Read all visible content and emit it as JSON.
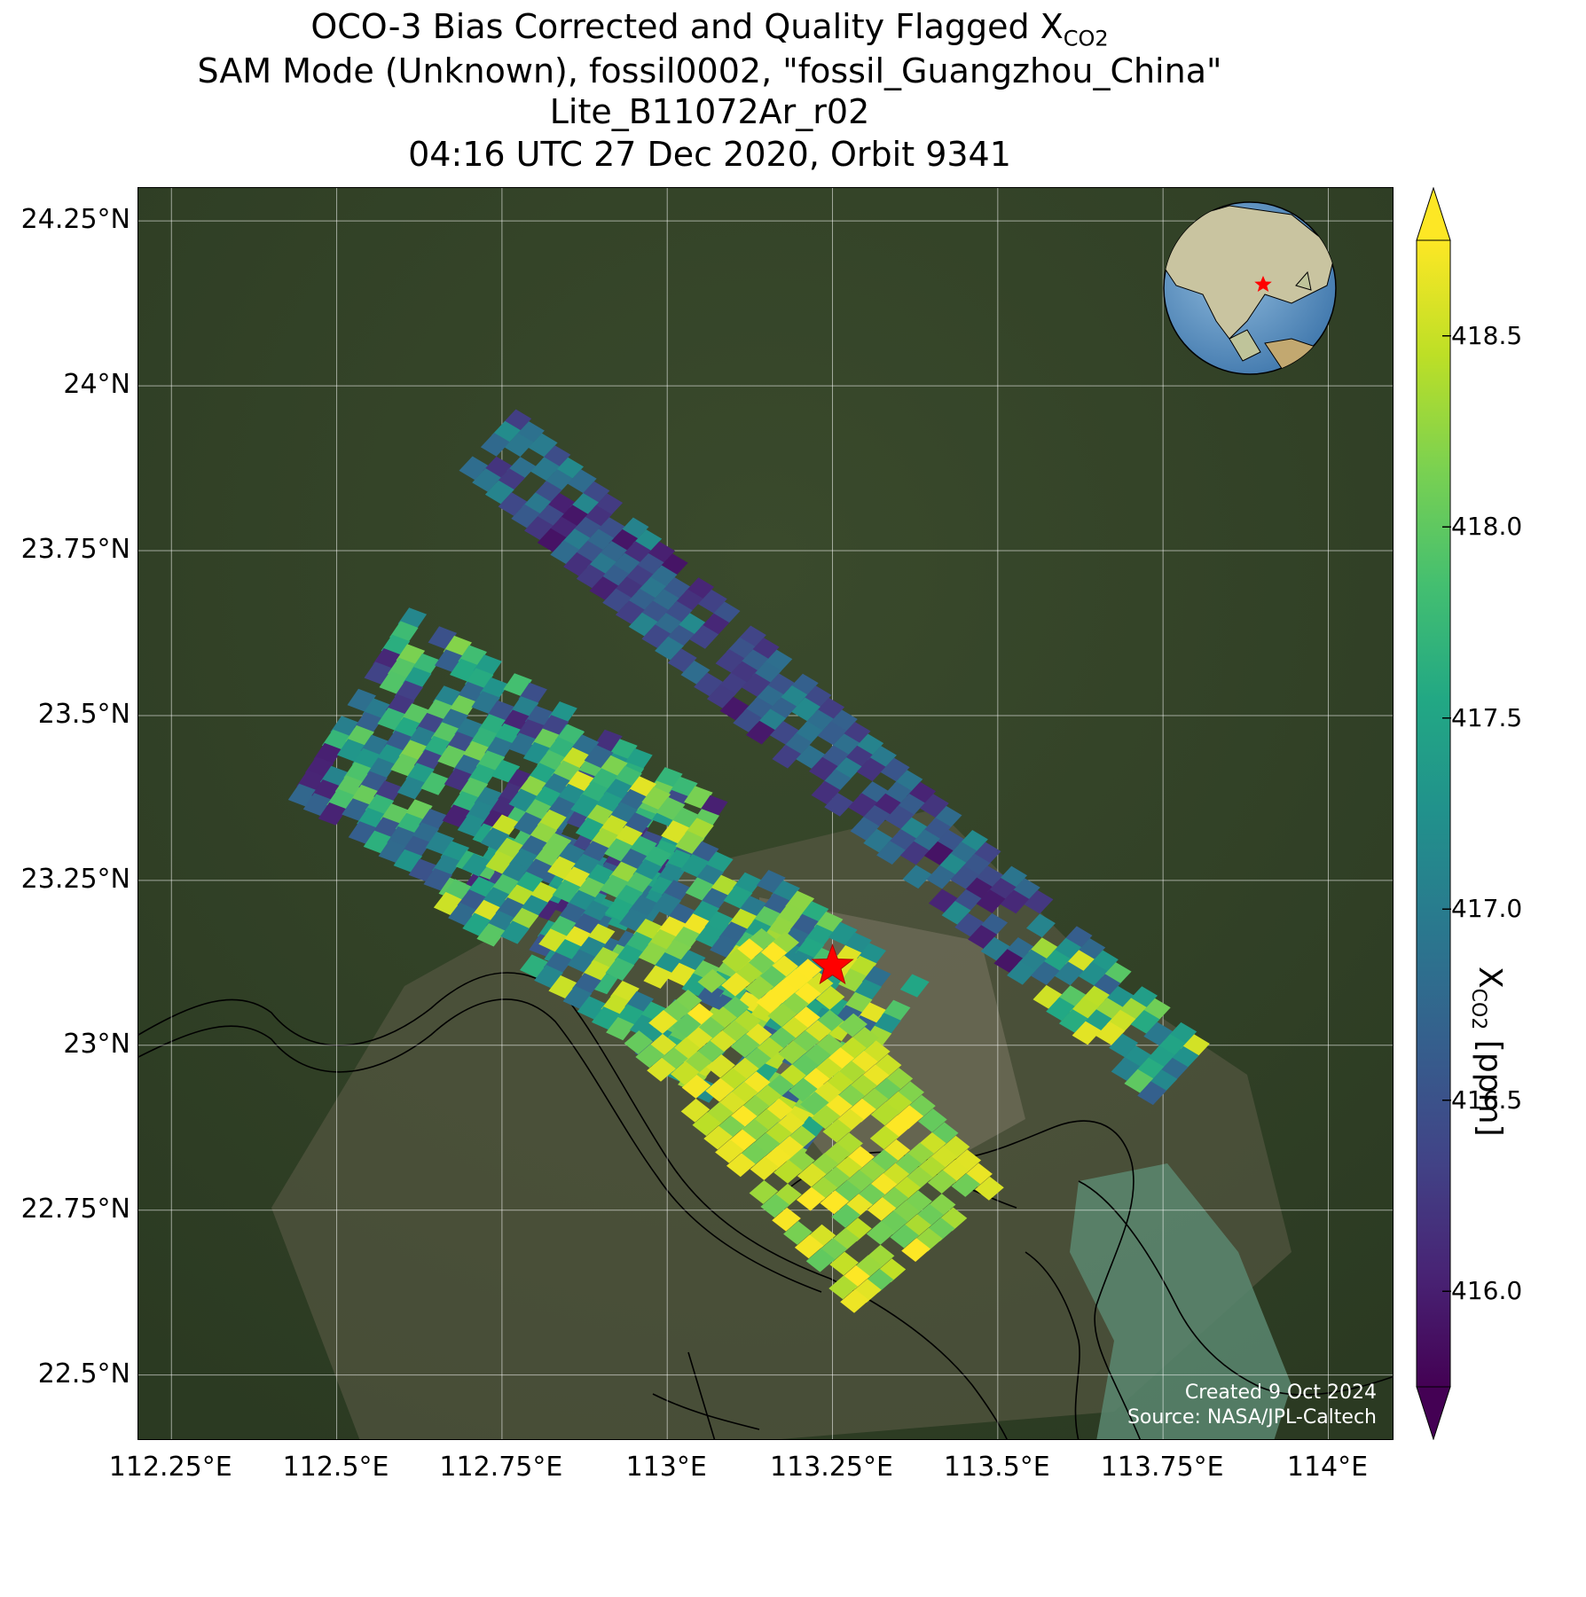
{
  "title": {
    "line1_prefix": "OCO-3 Bias Corrected and Quality Flagged X",
    "line1_sub": "CO2",
    "line2": "SAM Mode (Unknown), fossil0002, \"fossil_Guangzhou_China\"",
    "line3": "Lite_B11072Ar_r02",
    "line4": "04:16 UTC 27 Dec 2020, Orbit 9341"
  },
  "map": {
    "lon_range": [
      112.2,
      114.1
    ],
    "lat_range": [
      22.4,
      24.3
    ],
    "lon_ticks": [
      {
        "value": 112.25,
        "label": "112.25°E"
      },
      {
        "value": 112.5,
        "label": "112.5°E"
      },
      {
        "value": 112.75,
        "label": "112.75°E"
      },
      {
        "value": 113.0,
        "label": "113°E"
      },
      {
        "value": 113.25,
        "label": "113.25°E"
      },
      {
        "value": 113.5,
        "label": "113.5°E"
      },
      {
        "value": 113.75,
        "label": "113.75°E"
      },
      {
        "value": 114.0,
        "label": "114°E"
      }
    ],
    "lat_ticks": [
      {
        "value": 24.25,
        "label": "24.25°N"
      },
      {
        "value": 24.0,
        "label": "24°N"
      },
      {
        "value": 23.75,
        "label": "23.75°N"
      },
      {
        "value": 23.5,
        "label": "23.5°N"
      },
      {
        "value": 23.25,
        "label": "23.25°N"
      },
      {
        "value": 23.0,
        "label": "23°N"
      },
      {
        "value": 22.75,
        "label": "22.75°N"
      },
      {
        "value": 22.5,
        "label": "22.5°N"
      }
    ],
    "target": {
      "name": "fossil_Guangzhou_China",
      "lon": 113.25,
      "lat": 23.12,
      "marker": "red-star",
      "color": "#ff0000"
    },
    "swaths": [
      {
        "name": "north-swath",
        "start": [
          112.73,
          23.92
        ],
        "end": [
          113.78,
          22.95
        ],
        "width_deg": 0.13,
        "dominant_range": [
          415.9,
          417.2
        ],
        "tail_range": [
          416.6,
          418.7
        ]
      },
      {
        "name": "south-swath-upper",
        "start": [
          112.52,
          23.52
        ],
        "end": [
          113.0,
          23.22
        ],
        "width_deg": 0.35,
        "dominant_range": [
          416.0,
          418.2
        ]
      },
      {
        "name": "south-swath-middle",
        "start": [
          112.75,
          23.35
        ],
        "end": [
          113.3,
          22.95
        ],
        "width_deg": 0.35,
        "dominant_range": [
          416.6,
          418.7
        ]
      },
      {
        "name": "south-swath-lower",
        "start": [
          113.05,
          23.1
        ],
        "end": [
          113.4,
          22.68
        ],
        "width_deg": 0.3,
        "dominant_range": [
          418.0,
          418.8
        ]
      }
    ],
    "inset_globe": {
      "center_region": "Southeast Asia",
      "marker": "red-star"
    }
  },
  "colorbar": {
    "vmin": 415.75,
    "vmax": 418.75,
    "extend": "both",
    "colormap": "viridis",
    "ticks": [
      {
        "value": 416.0,
        "label": "416.0"
      },
      {
        "value": 416.5,
        "label": "416.5"
      },
      {
        "value": 417.0,
        "label": "417.0"
      },
      {
        "value": 417.5,
        "label": "417.5"
      },
      {
        "value": 418.0,
        "label": "418.0"
      },
      {
        "value": 418.5,
        "label": "418.5"
      }
    ],
    "label_prefix": "X",
    "label_sub": "CO2",
    "label_suffix": " [ppm]"
  },
  "credits": {
    "line1": "Created 9 Oct 2024",
    "line2": "Source: NASA/JPL-Caltech"
  }
}
